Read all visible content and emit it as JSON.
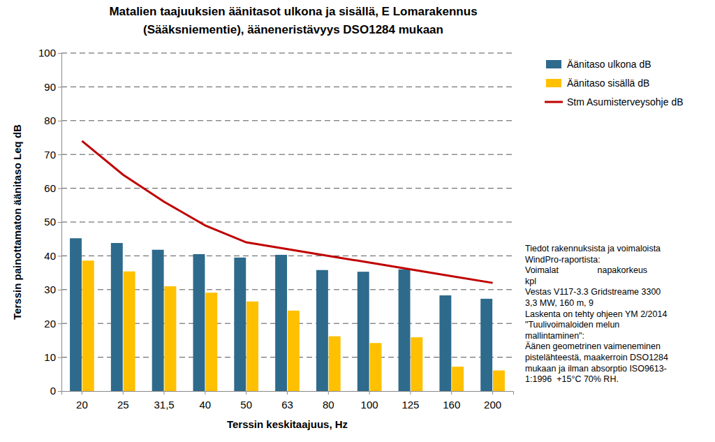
{
  "chart_data": {
    "type": "bar",
    "title": "Matalien taajuuksien äänitasot ulkona ja sisällä, E Lomarakennus (Sääksniementie), ääneneristävyys DSO1284 mukaan",
    "xlabel": "Terssin keskitaajuus, Hz",
    "ylabel": "Terssin painottamaton äänitaso Leq dB",
    "categories": [
      "20",
      "25",
      "31,5",
      "40",
      "50",
      "63",
      "80",
      "100",
      "125",
      "160",
      "200"
    ],
    "series": [
      {
        "name": "Äänitaso ulkona dB",
        "type": "bar",
        "color": "#2e6a8c",
        "values": [
          45.2,
          43.8,
          41.8,
          40.5,
          39.5,
          40.3,
          35.8,
          35.3,
          36.0,
          28.3,
          27.3
        ]
      },
      {
        "name": "Äänitaso sisällä dB",
        "type": "bar",
        "color": "#ffc000",
        "values": [
          38.6,
          35.4,
          31.0,
          29.1,
          26.5,
          23.8,
          16.2,
          14.2,
          15.9,
          7.2,
          6.1
        ]
      },
      {
        "name": "Stm Asumisterveysohje dB",
        "type": "line",
        "color": "#c00000",
        "values": [
          74,
          64,
          56,
          49,
          44,
          42,
          40,
          38,
          36,
          34,
          32
        ]
      }
    ],
    "ylim": [
      0,
      100
    ],
    "yticks": [
      0,
      10,
      20,
      30,
      40,
      50,
      60,
      70,
      80,
      90,
      100
    ],
    "grid": true,
    "legend": "right",
    "annotations": [
      "Tiedot rakennuksista ja voimaloista",
      "WindPro-raportista:",
      "Voimalat                napakorkeus",
      "kpl",
      "Vestas V117-3.3 Gridstreame 3300",
      "3,3 MW, 160 m, 9",
      "Laskenta on tehty ohjeen YM 2/2014",
      "\"Tuulivoimaloiden melun",
      "mallintaminen\":",
      "Äänen geometrinen vaimeneminen",
      "pistelähteestä, maakerroin DSO1284",
      "mukaan ja ilman absorptio ISO9613-",
      "1:1996  +15°C 70% RH."
    ]
  }
}
